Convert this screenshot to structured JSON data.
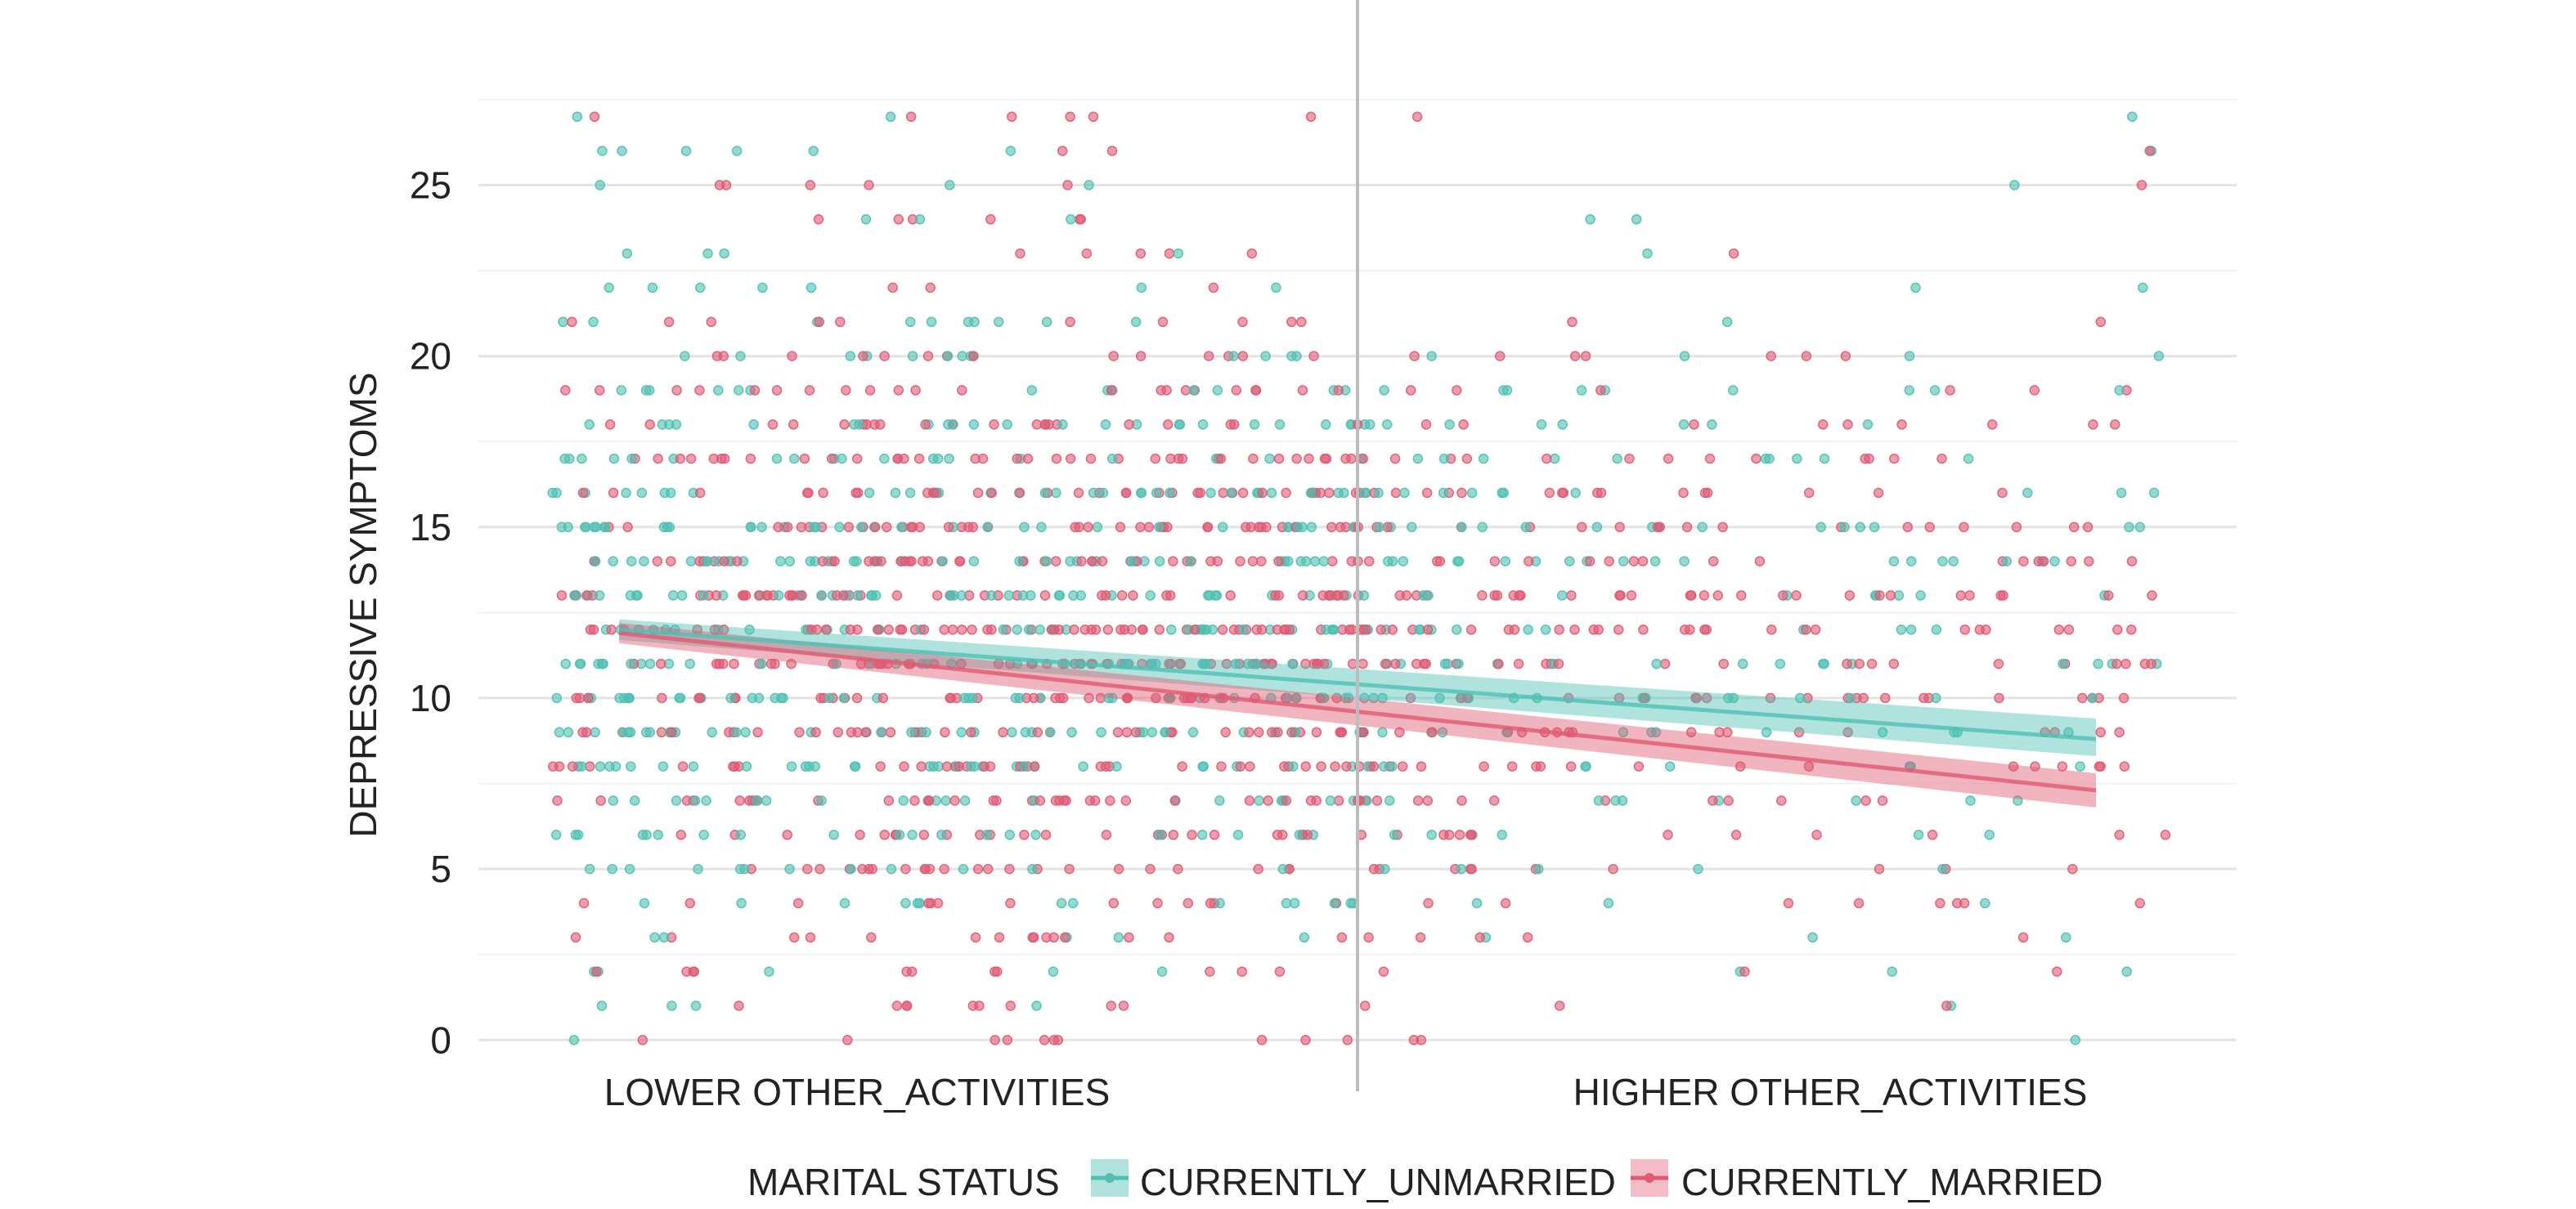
{
  "chart_data": {
    "type": "scatter",
    "ylabel": "DEPRESSIVE SYMPTOMS",
    "xlabel": "",
    "x_category_labels": [
      "LOWER OTHER_ACTIVITIES",
      "HIGHER OTHER_ACTIVITIES"
    ],
    "ylim": [
      -1.5,
      28.5
    ],
    "xlim": [
      0,
      100
    ],
    "y_ticks": [
      0,
      5,
      10,
      15,
      20,
      25
    ],
    "grid": true,
    "divider_x": 50,
    "legend": {
      "title": "MARITAL STATUS",
      "placement": "bottom",
      "entries": [
        "CURRENTLY_UNMARRIED",
        "CURRENTLY_MARRIED"
      ]
    },
    "colors": {
      "CURRENTLY_UNMARRIED": "#4fc0b3",
      "CURRENTLY_MARRIED": "#e05a73"
    },
    "series": [
      {
        "name": "CURRENTLY_UNMARRIED",
        "fit_line": {
          "x": [
            8,
            92
          ],
          "y": [
            12.0,
            8.8
          ]
        },
        "ci_band": {
          "x": [
            8,
            92
          ],
          "lower": [
            11.7,
            8.3
          ],
          "upper": [
            12.3,
            9.4
          ]
        }
      },
      {
        "name": "CURRENTLY_MARRIED",
        "fit_line": {
          "x": [
            8,
            92
          ],
          "y": [
            11.9,
            7.3
          ]
        },
        "ci_band": {
          "x": [
            8,
            92
          ],
          "lower": [
            11.6,
            6.8
          ],
          "upper": [
            12.2,
            7.8
          ]
        }
      }
    ]
  }
}
